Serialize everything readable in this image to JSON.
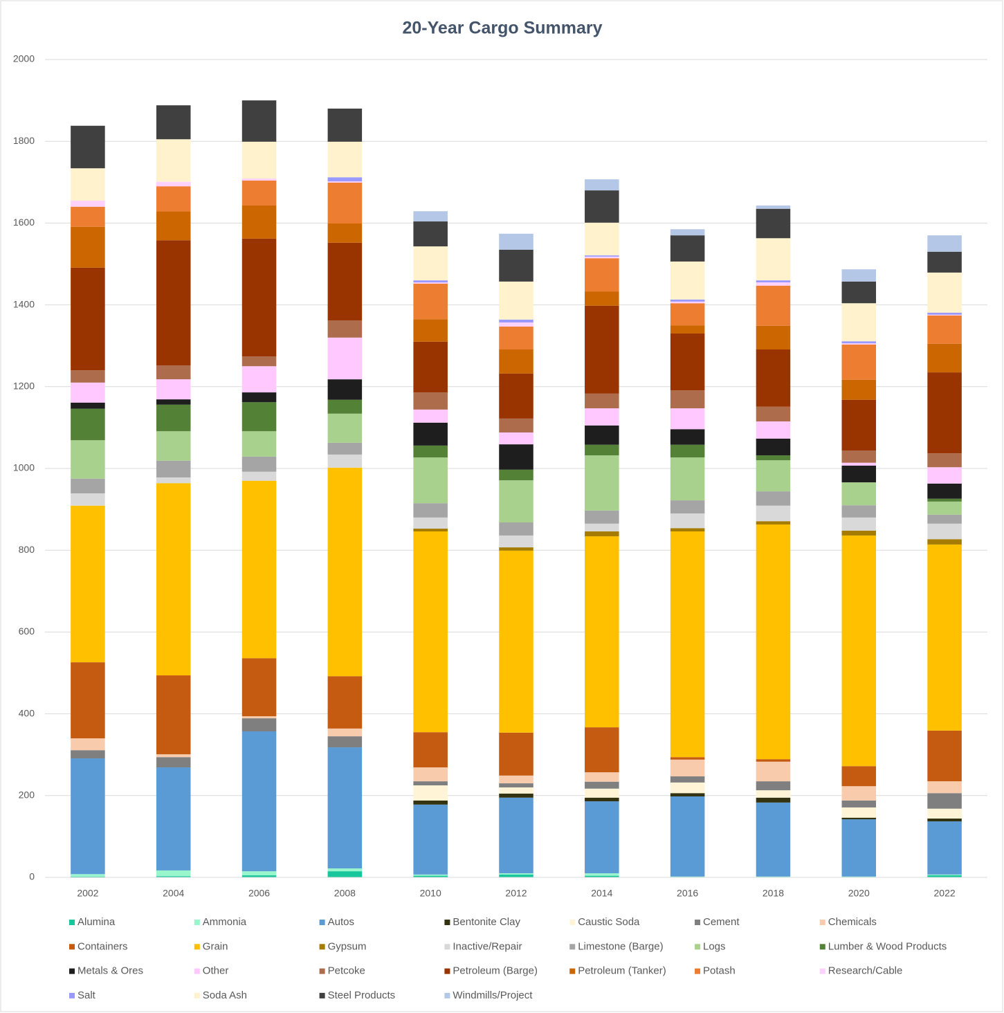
{
  "chart_data": {
    "type": "stacked_bar",
    "title": "20-Year Cargo Summary",
    "categories": [
      "2002",
      "2004",
      "2006",
      "2008",
      "2010",
      "2012",
      "2014",
      "2016",
      "2018",
      "2020",
      "2022"
    ],
    "ylim": [
      0,
      2000
    ],
    "yticks": [
      0,
      200,
      400,
      600,
      800,
      1000,
      1200,
      1400,
      1600,
      1800,
      2000
    ],
    "grid": true,
    "legend": "bottom",
    "series": [
      {
        "name": "Alumina",
        "color": "#17c69b",
        "values": [
          2,
          3,
          5,
          15,
          4,
          7,
          4,
          1,
          1,
          1,
          5
        ]
      },
      {
        "name": "Ammonia",
        "color": "#99f5cc",
        "values": [
          6,
          14,
          10,
          7,
          3,
          3,
          6,
          1,
          1,
          1,
          2
        ]
      },
      {
        "name": "Autos",
        "color": "#5b9bd5",
        "values": [
          283,
          252,
          342,
          296,
          171,
          185,
          176,
          196,
          181,
          140,
          130
        ]
      },
      {
        "name": "Bentonite Clay",
        "color": "#333311",
        "values": [
          0,
          0,
          0,
          0,
          10,
          10,
          9,
          8,
          12,
          4,
          7
        ]
      },
      {
        "name": "Caustic Soda",
        "color": "#fff5d6",
        "values": [
          0,
          0,
          0,
          0,
          37,
          15,
          22,
          26,
          18,
          25,
          24
        ]
      },
      {
        "name": "Cement",
        "color": "#7f7f7f",
        "values": [
          20,
          25,
          32,
          27,
          10,
          10,
          17,
          15,
          22,
          17,
          38
        ]
      },
      {
        "name": "Chemicals",
        "color": "#f8cbad",
        "values": [
          29,
          7,
          5,
          19,
          34,
          19,
          23,
          41,
          48,
          35,
          29
        ]
      },
      {
        "name": "Containers",
        "color": "#c55a11",
        "values": [
          186,
          193,
          142,
          128,
          86,
          105,
          110,
          6,
          6,
          49,
          124
        ]
      },
      {
        "name": "Grain",
        "color": "#ffc000",
        "values": [
          383,
          470,
          434,
          510,
          491,
          445,
          467,
          552,
          574,
          564,
          455
        ]
      },
      {
        "name": "Gypsum",
        "color": "#a67c00",
        "values": [
          0,
          0,
          0,
          0,
          7,
          8,
          12,
          8,
          8,
          12,
          13
        ]
      },
      {
        "name": "Inactive/Repair",
        "color": "#d9d9d9",
        "values": [
          30,
          14,
          22,
          32,
          27,
          29,
          19,
          36,
          38,
          32,
          38
        ]
      },
      {
        "name": "Limestone (Barge)",
        "color": "#a5a5a5",
        "values": [
          36,
          41,
          37,
          29,
          35,
          32,
          32,
          32,
          35,
          30,
          22
        ]
      },
      {
        "name": "Logs",
        "color": "#a9d18e",
        "values": [
          94,
          72,
          62,
          71,
          112,
          103,
          135,
          105,
          76,
          56,
          32
        ]
      },
      {
        "name": "Lumber & Wood Products",
        "color": "#538135",
        "values": [
          77,
          65,
          71,
          34,
          29,
          26,
          26,
          31,
          12,
          0,
          7
        ]
      },
      {
        "name": "Metals & Ores",
        "color": "#1e1e1e",
        "values": [
          15,
          13,
          24,
          50,
          56,
          62,
          47,
          38,
          41,
          41,
          37
        ]
      },
      {
        "name": "Other",
        "color": "#ffc8ff",
        "values": [
          49,
          49,
          64,
          102,
          32,
          29,
          42,
          51,
          42,
          7,
          40
        ]
      },
      {
        "name": "Petcoke",
        "color": "#ad6c4c",
        "values": [
          30,
          34,
          24,
          42,
          42,
          34,
          36,
          44,
          36,
          30,
          34
        ]
      },
      {
        "name": "Petroleum (Barge)",
        "color": "#993300",
        "values": [
          251,
          306,
          288,
          190,
          124,
          110,
          215,
          139,
          140,
          124,
          198
        ]
      },
      {
        "name": "Petroleum (Tanker)",
        "color": "#cc6600",
        "values": [
          100,
          71,
          81,
          47,
          55,
          59,
          35,
          20,
          58,
          49,
          70
        ]
      },
      {
        "name": "Potash",
        "color": "#ed7d31",
        "values": [
          49,
          61,
          61,
          100,
          87,
          56,
          81,
          54,
          98,
          86,
          69
        ]
      },
      {
        "name": "Research/Cable",
        "color": "#ffd1ff",
        "values": [
          15,
          11,
          5,
          3,
          3,
          10,
          4,
          4,
          8,
          3,
          2
        ]
      },
      {
        "name": "Salt",
        "color": "#9999ff",
        "values": [
          0,
          0,
          0,
          10,
          5,
          7,
          3,
          5,
          5,
          5,
          5
        ]
      },
      {
        "name": "Soda Ash",
        "color": "#fff2cc",
        "values": [
          79,
          104,
          90,
          87,
          83,
          93,
          80,
          93,
          103,
          93,
          98
        ]
      },
      {
        "name": "Steel Products",
        "color": "#404040",
        "values": [
          104,
          83,
          101,
          81,
          61,
          78,
          79,
          64,
          72,
          53,
          51
        ]
      },
      {
        "name": "Windmills/Project",
        "color": "#b4c7e7",
        "values": [
          0,
          0,
          0,
          0,
          25,
          39,
          27,
          15,
          8,
          30,
          40
        ]
      }
    ]
  }
}
